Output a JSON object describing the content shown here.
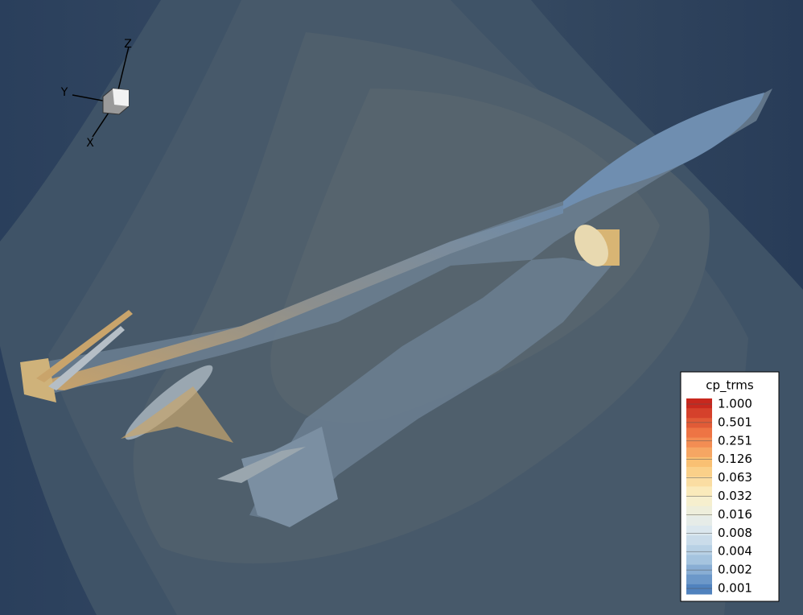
{
  "axes_triad": {
    "x": "X",
    "y": "Y",
    "z": "Z"
  },
  "legend": {
    "title": "cp_trms",
    "labels": [
      "1.000",
      "0.501",
      "0.251",
      "0.126",
      "0.063",
      "0.032",
      "0.016",
      "0.008",
      "0.004",
      "0.002",
      "0.001"
    ]
  }
}
